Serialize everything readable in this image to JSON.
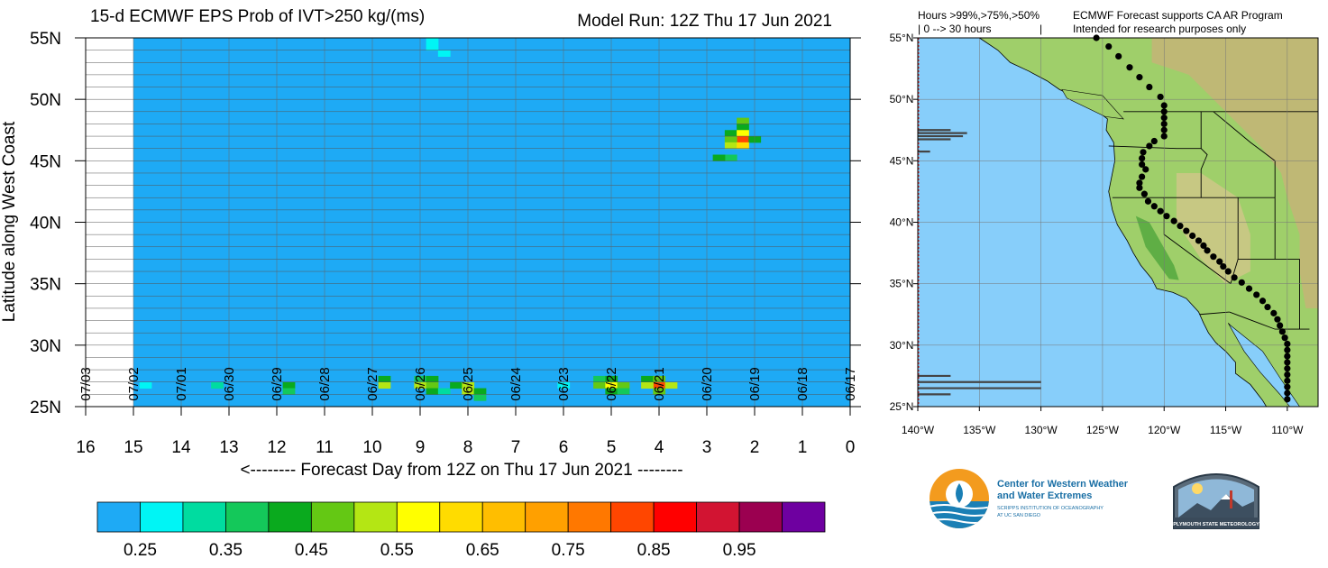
{
  "chart_data": {
    "type": "heatmap",
    "title": "15-d ECMWF EPS Prob of IVT>250 kg/(ms)",
    "model_run": "Model Run: 12Z Thu 17 Jun 2021",
    "xlabel": "<-------- Forecast Day from 12Z on Thu 17 Jun 2021 --------",
    "ylabel": "Latitude along West Coast",
    "x_ticks": [
      "16",
      "15",
      "14",
      "13",
      "12",
      "11",
      "10",
      "9",
      "8",
      "7",
      "6",
      "5",
      "4",
      "3",
      "2",
      "1",
      "0"
    ],
    "y_ticks": [
      "55N",
      "50N",
      "45N",
      "40N",
      "35N",
      "30N",
      "25N"
    ],
    "date_labels": [
      "07/03",
      "07/02",
      "07/01",
      "06/30",
      "06/29",
      "06/28",
      "06/27",
      "06/26",
      "06/25",
      "06/24",
      "06/23",
      "06/22",
      "06/21",
      "06/20",
      "06/19",
      "06/18",
      "06/17"
    ],
    "xlim": [
      16,
      0
    ],
    "ylim": [
      25,
      55
    ],
    "background_value": 0.25,
    "background_color": "#1eaaf5",
    "colorbar_colors": [
      "#1eaaf5",
      "#00f5f5",
      "#00dca0",
      "#14c85a",
      "#0aaa1e",
      "#64c814",
      "#b4e614",
      "#ffff00",
      "#ffdc00",
      "#ffbe00",
      "#ffa000",
      "#ff7800",
      "#ff4600",
      "#ff0000",
      "#d21432",
      "#9b0050",
      "#6e00a0"
    ],
    "colorbar_labels": [
      "0.25",
      "0.35",
      "0.45",
      "0.55",
      "0.65",
      "0.75",
      "0.85",
      "0.95"
    ],
    "cells": [
      {
        "day": 8.75,
        "lat": 54.75,
        "value": 0.3
      },
      {
        "day": 8.75,
        "lat": 54.25,
        "value": 0.3
      },
      {
        "day": 8.5,
        "lat": 53.75,
        "value": 0.3
      },
      {
        "day": 2.25,
        "lat": 48.25,
        "value": 0.5
      },
      {
        "day": 2.25,
        "lat": 47.75,
        "value": 0.45
      },
      {
        "day": 2.5,
        "lat": 47.25,
        "value": 0.45
      },
      {
        "day": 2.25,
        "lat": 47.25,
        "value": 0.6
      },
      {
        "day": 2.25,
        "lat": 46.75,
        "value": 0.85
      },
      {
        "day": 2.0,
        "lat": 46.75,
        "value": 0.45
      },
      {
        "day": 2.5,
        "lat": 46.75,
        "value": 0.5
      },
      {
        "day": 2.5,
        "lat": 46.25,
        "value": 0.55
      },
      {
        "day": 2.25,
        "lat": 46.25,
        "value": 0.65
      },
      {
        "day": 2.5,
        "lat": 45.25,
        "value": 0.4
      },
      {
        "day": 2.75,
        "lat": 45.25,
        "value": 0.45
      },
      {
        "day": 14.75,
        "lat": 26.75,
        "value": 0.3
      },
      {
        "day": 13.25,
        "lat": 26.75,
        "value": 0.35
      },
      {
        "day": 11.75,
        "lat": 26.75,
        "value": 0.45
      },
      {
        "day": 11.75,
        "lat": 26.25,
        "value": 0.4
      },
      {
        "day": 9.75,
        "lat": 27.25,
        "value": 0.45
      },
      {
        "day": 9.75,
        "lat": 26.75,
        "value": 0.55
      },
      {
        "day": 9.0,
        "lat": 27.25,
        "value": 0.4
      },
      {
        "day": 8.75,
        "lat": 27.25,
        "value": 0.45
      },
      {
        "day": 9.0,
        "lat": 26.75,
        "value": 0.55
      },
      {
        "day": 8.75,
        "lat": 26.75,
        "value": 0.5
      },
      {
        "day": 8.75,
        "lat": 26.25,
        "value": 0.45
      },
      {
        "day": 8.5,
        "lat": 26.25,
        "value": 0.35
      },
      {
        "day": 8.25,
        "lat": 26.75,
        "value": 0.45
      },
      {
        "day": 8.0,
        "lat": 26.75,
        "value": 0.55
      },
      {
        "day": 8.0,
        "lat": 26.25,
        "value": 0.55
      },
      {
        "day": 7.75,
        "lat": 26.25,
        "value": 0.45
      },
      {
        "day": 7.75,
        "lat": 25.75,
        "value": 0.4
      },
      {
        "day": 6.0,
        "lat": 26.75,
        "value": 0.3
      },
      {
        "day": 5.25,
        "lat": 27.25,
        "value": 0.4
      },
      {
        "day": 5.0,
        "lat": 27.25,
        "value": 0.45
      },
      {
        "day": 5.25,
        "lat": 26.75,
        "value": 0.5
      },
      {
        "day": 5.0,
        "lat": 26.75,
        "value": 0.6
      },
      {
        "day": 4.75,
        "lat": 26.75,
        "value": 0.5
      },
      {
        "day": 5.0,
        "lat": 26.25,
        "value": 0.45
      },
      {
        "day": 4.75,
        "lat": 26.25,
        "value": 0.4
      },
      {
        "day": 4.25,
        "lat": 27.25,
        "value": 0.45
      },
      {
        "day": 4.0,
        "lat": 27.25,
        "value": 0.5
      },
      {
        "day": 4.0,
        "lat": 26.75,
        "value": 0.85
      },
      {
        "day": 3.75,
        "lat": 26.75,
        "value": 0.55
      },
      {
        "day": 4.25,
        "lat": 26.75,
        "value": 0.55
      },
      {
        "day": 4.0,
        "lat": 26.25,
        "value": 0.5
      }
    ]
  },
  "map": {
    "header_left_line1": "Hours >99%,>75%,>50%",
    "header_left_line2": "| 0 --> 30 hours",
    "header_left_bar": "|",
    "header_right_line1": "ECMWF Forecast supports CA AR Program",
    "header_right_line2": "Intended for research purposes only",
    "lat_ticks": [
      "55°N",
      "50°N",
      "45°N",
      "40°N",
      "35°N",
      "30°N",
      "25°N"
    ],
    "lon_ticks": [
      "140°W",
      "135°W",
      "130°W",
      "125°W",
      "120°W",
      "115°W",
      "110°W"
    ],
    "ocean_color": "#87cefa",
    "coast_points_lonlat": [
      [
        -125.5,
        55
      ],
      [
        -124.5,
        54.3
      ],
      [
        -123.7,
        53.5
      ],
      [
        -122.8,
        52.6
      ],
      [
        -122.0,
        51.8
      ],
      [
        -121.2,
        51.0
      ],
      [
        -120.3,
        50.2
      ],
      [
        -120,
        49.5
      ],
      [
        -120,
        49
      ],
      [
        -120,
        48.5
      ],
      [
        -120,
        48
      ],
      [
        -120,
        47.5
      ],
      [
        -120,
        47
      ],
      [
        -120.8,
        46.6
      ],
      [
        -121.2,
        46.2
      ],
      [
        -121.7,
        45.7
      ],
      [
        -121.8,
        45.2
      ],
      [
        -121.8,
        44.7
      ],
      [
        -121.5,
        44.3
      ],
      [
        -121.8,
        43.7
      ],
      [
        -122,
        43.2
      ],
      [
        -122,
        42.8
      ],
      [
        -121.6,
        42.3
      ],
      [
        -121.3,
        41.7
      ],
      [
        -120.8,
        41.3
      ],
      [
        -120.3,
        40.9
      ],
      [
        -119.8,
        40.5
      ],
      [
        -119.2,
        40.1
      ],
      [
        -118.7,
        39.7
      ],
      [
        -118.2,
        39.3
      ],
      [
        -117.7,
        38.9
      ],
      [
        -117.2,
        38.5
      ],
      [
        -116.8,
        38.1
      ],
      [
        -116.5,
        37.7
      ],
      [
        -116,
        37.2
      ],
      [
        -115.5,
        36.8
      ],
      [
        -115.2,
        36.4
      ],
      [
        -114.8,
        36
      ],
      [
        -114.3,
        35.5
      ],
      [
        -113.7,
        35.1
      ],
      [
        -113.1,
        34.6
      ],
      [
        -112.5,
        34.1
      ],
      [
        -112,
        33.6
      ],
      [
        -111.6,
        33.1
      ],
      [
        -111.1,
        32.6
      ],
      [
        -110.8,
        32.1
      ],
      [
        -110.6,
        31.6
      ],
      [
        -110.4,
        31.1
      ],
      [
        -110.2,
        30.6
      ],
      [
        -110,
        30.1
      ],
      [
        -110,
        29.6
      ],
      [
        -110,
        29.1
      ],
      [
        -110,
        28.6
      ],
      [
        -110,
        28.1
      ],
      [
        -110,
        27.6
      ],
      [
        -110,
        27.1
      ],
      [
        -110,
        26.6
      ],
      [
        -110,
        26.1
      ],
      [
        -110,
        25.6
      ]
    ],
    "bars": [
      {
        "lat": 47.5,
        "length_hours": 8
      },
      {
        "lat": 47.25,
        "length_hours": 12
      },
      {
        "lat": 47.0,
        "length_hours": 11
      },
      {
        "lat": 46.75,
        "length_hours": 8
      },
      {
        "lat": 45.75,
        "length_hours": 3
      },
      {
        "lat": 27.5,
        "length_hours": 8
      },
      {
        "lat": 27.0,
        "length_hours": 30
      },
      {
        "lat": 26.5,
        "length_hours": 30
      },
      {
        "lat": 26.0,
        "length_hours": 8
      }
    ]
  },
  "logos": {
    "cw3e_line1": "Center for Western Weather",
    "cw3e_line2": "and Water Extremes",
    "cw3e_line3": "SCRIPPS INSTITUTION OF OCEANOGRAPHY",
    "cw3e_line4": "AT UC SAN DIEGO",
    "plymouth_label": "PLYMOUTH STATE METEOROLOGY"
  }
}
